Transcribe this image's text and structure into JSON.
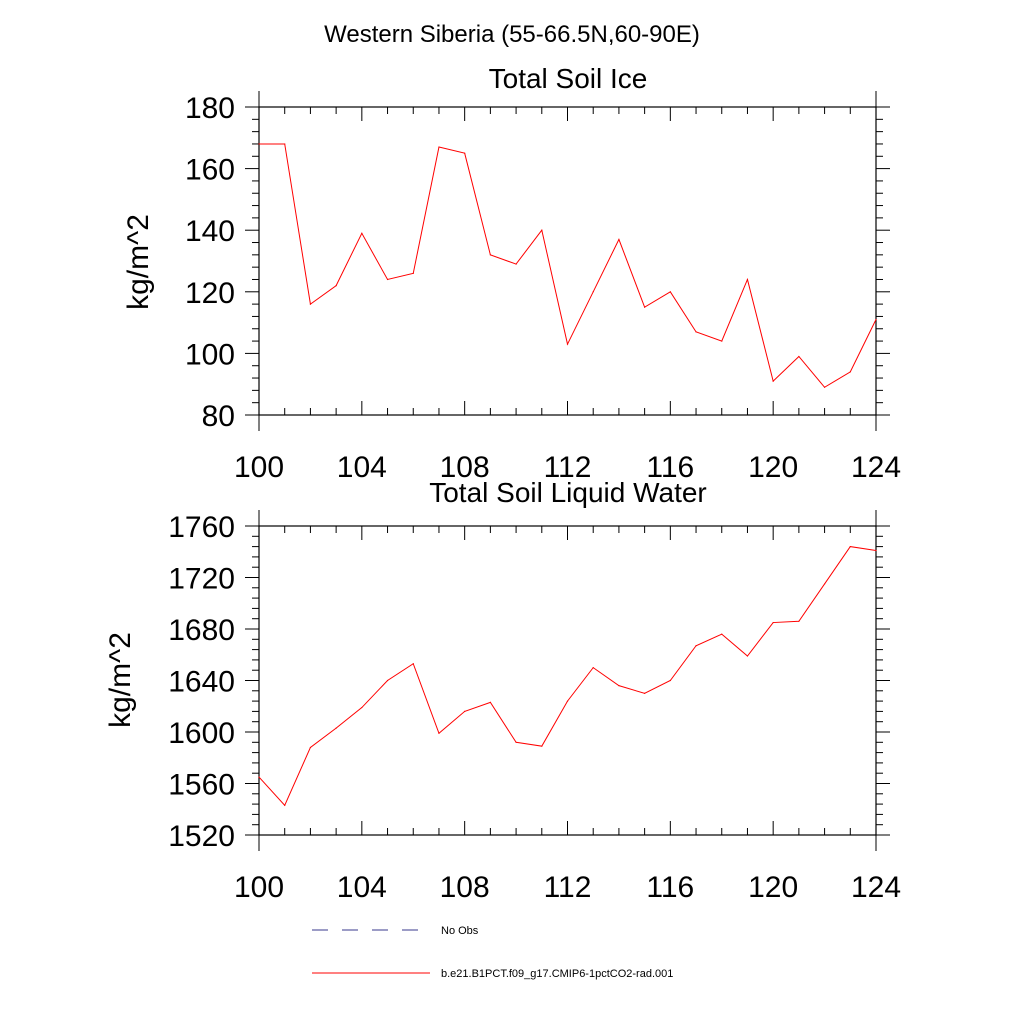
{
  "figure": {
    "title": "Western Siberia (55-66.5N,60-90E)"
  },
  "chart_data": [
    {
      "type": "line",
      "title": "Total Soil Ice",
      "xlabel": "",
      "ylabel": "kg/m^2",
      "xlim": [
        100,
        124
      ],
      "ylim": [
        80,
        180
      ],
      "x_ticks": [
        100,
        104,
        108,
        112,
        116,
        120,
        124
      ],
      "y_ticks": [
        80,
        100,
        120,
        140,
        160,
        180
      ],
      "series": [
        {
          "name": "b.e21.B1PCT.f09_g17.CMIP6-1pctCO2-rad.001",
          "color": "#ff0000",
          "x": [
            100,
            101,
            102,
            103,
            104,
            105,
            106,
            107,
            108,
            109,
            110,
            111,
            112,
            113,
            114,
            115,
            116,
            117,
            118,
            119,
            120,
            121,
            122,
            123,
            124
          ],
          "values": [
            168,
            168,
            116,
            122,
            139,
            124,
            126,
            167,
            165,
            132,
            129,
            140,
            103,
            120,
            137,
            115,
            120,
            107,
            104,
            124,
            91,
            99,
            89,
            94,
            111
          ]
        }
      ]
    },
    {
      "type": "line",
      "title": "Total Soil Liquid Water",
      "xlabel": "",
      "ylabel": "kg/m^2",
      "xlim": [
        100,
        124
      ],
      "ylim": [
        1520,
        1760
      ],
      "x_ticks": [
        100,
        104,
        108,
        112,
        116,
        120,
        124
      ],
      "y_ticks": [
        1520,
        1560,
        1600,
        1640,
        1680,
        1720,
        1760
      ],
      "series": [
        {
          "name": "b.e21.B1PCT.f09_g17.CMIP6-1pctCO2-rad.001",
          "color": "#ff0000",
          "x": [
            100,
            101,
            102,
            103,
            104,
            105,
            106,
            107,
            108,
            109,
            110,
            111,
            112,
            113,
            114,
            115,
            116,
            117,
            118,
            119,
            120,
            121,
            122,
            123,
            124
          ],
          "values": [
            1565,
            1543,
            1588,
            1603,
            1619,
            1640,
            1653,
            1599,
            1616,
            1623,
            1592,
            1589,
            1624,
            1650,
            1636,
            1630,
            1640,
            1667,
            1676,
            1659,
            1685,
            1686,
            1715,
            1744,
            1741
          ]
        }
      ]
    }
  ],
  "legend": {
    "items": [
      {
        "label": "No Obs",
        "color": "#3a3a8c",
        "dash": "dashed"
      },
      {
        "label": "b.e21.B1PCT.f09_g17.CMIP6-1pctCO2-rad.001",
        "color": "#ff0000",
        "dash": "solid"
      }
    ]
  }
}
